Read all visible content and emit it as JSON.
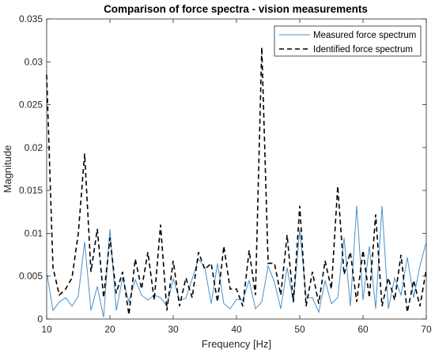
{
  "chart_data": {
    "type": "line",
    "title": "Comparison of force spectra - vision measurements",
    "xlabel": "Frequency [Hz]",
    "ylabel": "Magnitude",
    "xlim": [
      10,
      70
    ],
    "ylim": [
      0,
      0.035
    ],
    "xticks": [
      10,
      20,
      30,
      40,
      50,
      60,
      70
    ],
    "xtick_labels": [
      "10",
      "20",
      "30",
      "40",
      "50",
      "60",
      "70"
    ],
    "yticks": [
      0,
      0.005,
      0.01,
      0.015,
      0.02,
      0.025,
      0.03,
      0.035
    ],
    "ytick_labels": [
      "0",
      "0.005",
      "0.01",
      "0.015",
      "0.02",
      "0.025",
      "0.03",
      "0.035"
    ],
    "grid": false,
    "legend_position": "top-right",
    "series": [
      {
        "name": "Measured force spectrum",
        "color": "#4a90c8",
        "style": "solid",
        "x": [
          10,
          11,
          12,
          13,
          14,
          15,
          16,
          17,
          18,
          19,
          20,
          21,
          22,
          23,
          24,
          25,
          26,
          27,
          28,
          29,
          30,
          31,
          32,
          33,
          34,
          35,
          36,
          37,
          38,
          39,
          40,
          41,
          42,
          43,
          44,
          45,
          46,
          47,
          48,
          49,
          50,
          51,
          52,
          53,
          54,
          55,
          56,
          57,
          58,
          59,
          60,
          61,
          62,
          63,
          64,
          65,
          66,
          67,
          68,
          69,
          70
        ],
        "y": [
          0.0055,
          0.001,
          0.002,
          0.0025,
          0.0015,
          0.0027,
          0.009,
          0.001,
          0.0038,
          0.0002,
          0.0105,
          0.001,
          0.0048,
          0.002,
          0.0046,
          0.0028,
          0.0022,
          0.0028,
          0.0025,
          0.0015,
          0.0047,
          0.0022,
          0.0024,
          0.0047,
          0.007,
          0.006,
          0.0018,
          0.0065,
          0.0018,
          0.0012,
          0.0023,
          0.0022,
          0.0045,
          0.0012,
          0.002,
          0.0062,
          0.0043,
          0.0012,
          0.006,
          0.0019,
          0.0105,
          0.0025,
          0.0025,
          0.0008,
          0.0045,
          0.0018,
          0.0025,
          0.0095,
          0.0015,
          0.0132,
          0.0022,
          0.0085,
          0.0012,
          0.0132,
          0.0012,
          0.0048,
          0.0028,
          0.0072,
          0.0025,
          0.0062,
          0.009
        ]
      },
      {
        "name": "Identified force spectrum",
        "color": "#000000",
        "style": "dashed",
        "x": [
          10,
          11,
          12,
          13,
          14,
          15,
          16,
          17,
          18,
          19,
          20,
          21,
          22,
          23,
          24,
          25,
          26,
          27,
          28,
          29,
          30,
          31,
          32,
          33,
          34,
          35,
          36,
          37,
          38,
          39,
          40,
          41,
          42,
          43,
          44,
          45,
          46,
          47,
          48,
          49,
          50,
          51,
          52,
          53,
          54,
          55,
          56,
          57,
          58,
          59,
          60,
          61,
          62,
          63,
          64,
          65,
          66,
          67,
          68,
          69,
          70
        ],
        "y": [
          0.0285,
          0.006,
          0.0028,
          0.0035,
          0.0048,
          0.01,
          0.0193,
          0.0055,
          0.0105,
          0.0025,
          0.0095,
          0.003,
          0.0055,
          0.0005,
          0.007,
          0.0035,
          0.0078,
          0.0022,
          0.011,
          0.001,
          0.0068,
          0.0015,
          0.0048,
          0.0025,
          0.0078,
          0.0058,
          0.0065,
          0.002,
          0.0085,
          0.0035,
          0.0035,
          0.0015,
          0.008,
          0.0028,
          0.0317,
          0.0065,
          0.0065,
          0.0028,
          0.0098,
          0.002,
          0.0132,
          0.0015,
          0.0055,
          0.0018,
          0.0068,
          0.0035,
          0.0155,
          0.0052,
          0.0078,
          0.002,
          0.008,
          0.0025,
          0.0122,
          0.0015,
          0.0048,
          0.0022,
          0.0075,
          0.0008,
          0.0045,
          0.0015,
          0.0058
        ]
      }
    ]
  }
}
